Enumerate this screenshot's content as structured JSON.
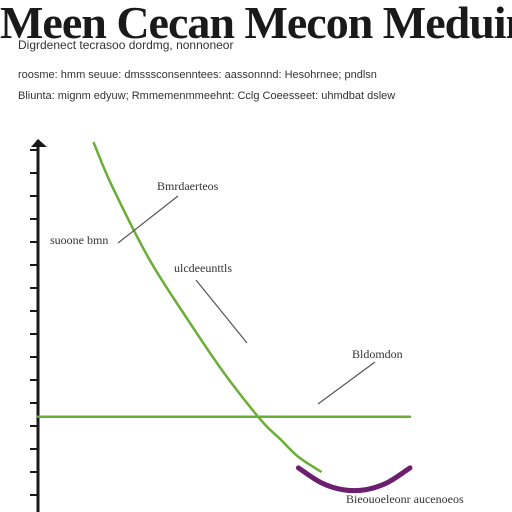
{
  "title": "Meen Cecan Mecon Meduin",
  "text_lines": [
    "Digrdenect tecrasoo dordmg, nonnoneor",
    "roosme: hmm seuue: dmsssconsenntees: aassonnnd: Hesohrnee; pndlsn",
    "Bliunta: mignm edyuw; Rmmemenmmeehnt: Cclg Coeesseet: uhmdbat dslew"
  ],
  "colors": {
    "axis": "#1a1a1a",
    "curve": "#6aae35",
    "horizontal_line": "#6aae35",
    "purple_curve": "#6b1f6e",
    "annotation_line": "#555555"
  },
  "chart_data": {
    "type": "line",
    "title": "Meen Cecan Mecon Meduin",
    "xlabel": "",
    "ylabel": "",
    "xlim": [
      0,
      100
    ],
    "ylim": [
      0,
      100
    ],
    "grid": false,
    "series": [
      {
        "color": "#6aae35",
        "x": [
          15,
          20,
          30,
          40,
          50,
          60,
          65,
          70,
          76
        ],
        "y": [
          100,
          88,
          68,
          52,
          37,
          24,
          19,
          14,
          10
        ]
      },
      {
        "color": "#6aae35",
        "x": [
          0,
          100
        ],
        "y": [
          25,
          25
        ]
      },
      {
        "color": "#6b1f6e",
        "x": [
          70,
          76,
          82,
          88,
          94,
          100
        ],
        "y": [
          11,
          7,
          5,
          5,
          7,
          11
        ]
      }
    ],
    "annotations": [
      {
        "text": "Bmrdaerteos",
        "x": 22,
        "y": 65
      },
      {
        "text": "suoone bmn",
        "x": 18,
        "y": 71
      },
      {
        "text": "ulcdeeunttls",
        "x": 53,
        "y": 46
      },
      {
        "text": "Bldomdon",
        "x": 79,
        "y": 25
      },
      {
        "text": "Bieouoeleonr aucenoeos",
        "x": 87,
        "y": 6
      }
    ]
  }
}
